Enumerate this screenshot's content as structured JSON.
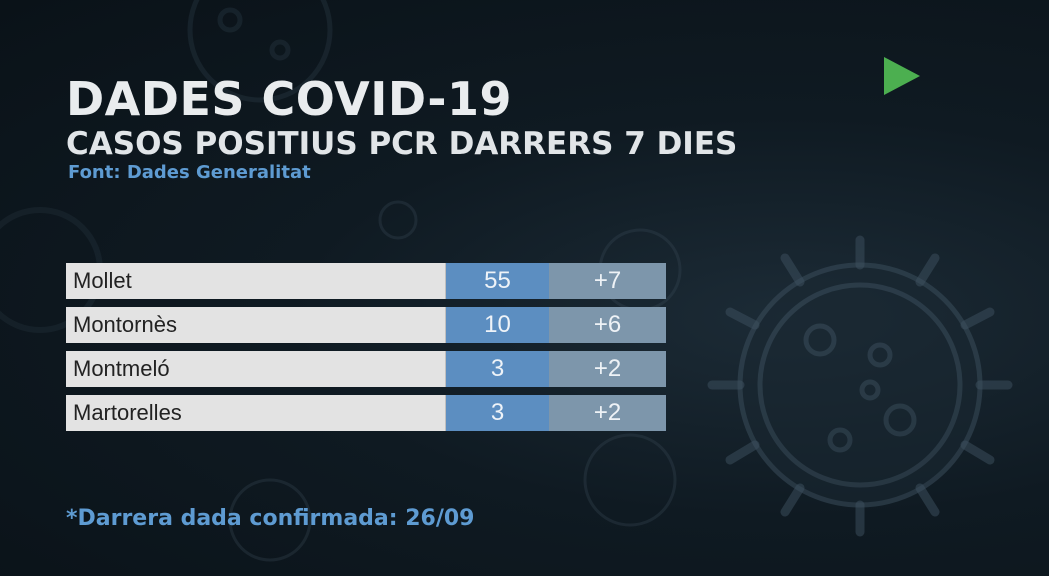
{
  "header": {
    "title": "DADES COVID-19",
    "subtitle": "CASOS POSITIUS PCR DARRERS 7 DIES",
    "source": "Font: Dades Generalitat"
  },
  "table": {
    "rows": [
      {
        "name": "Mollet",
        "total": "55",
        "new": "+7"
      },
      {
        "name": "Montornès",
        "total": "10",
        "new": "+6"
      },
      {
        "name": "Montmeló",
        "total": "3",
        "new": "+2"
      },
      {
        "name": "Martorelles",
        "total": "3",
        "new": "+2"
      }
    ]
  },
  "footnote": "*Darrera dada confirmada: 26/09",
  "icons": {
    "play": "play-icon",
    "background": "virus-icon"
  },
  "colors": {
    "background": "#0f1a22",
    "title": "#e9ecee",
    "accent_blue": "#5e9bd2",
    "total_cell": "#5c8ec1",
    "new_cell": "#7d96ab",
    "name_cell": "#e3e3e3",
    "play_green": "#4caf50"
  }
}
